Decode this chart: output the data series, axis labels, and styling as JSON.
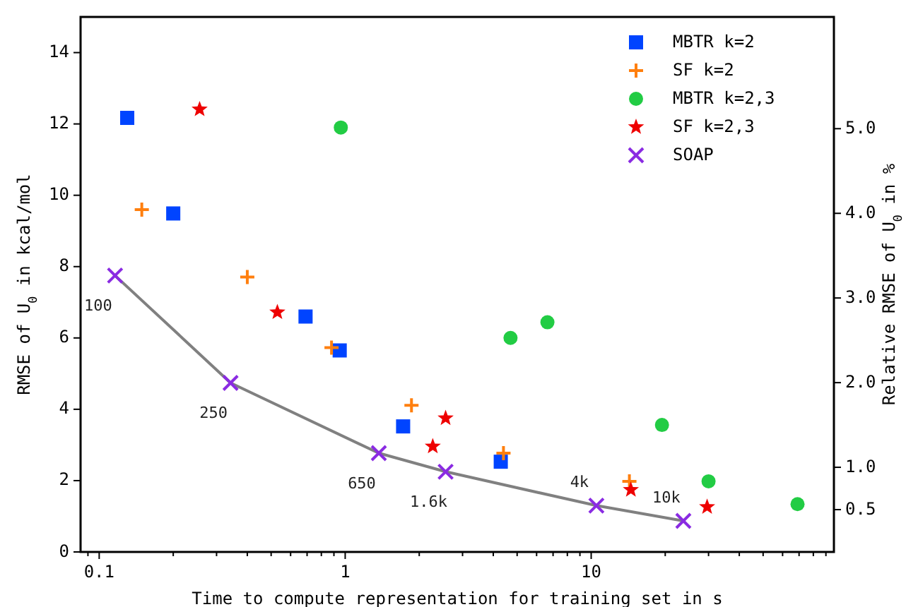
{
  "chart_data": {
    "type": "scatter",
    "xlabel": "Time to compute representation for training set in s",
    "ylabel": "RMSE of U$_{0}$ in kcal/mol",
    "y2label": "Relative RMSE of U$_{0}$ in %",
    "log": "x",
    "xlim": [
      0.084,
      97
    ],
    "ylim": [
      0,
      15
    ],
    "y2lim": [
      0,
      6.32
    ],
    "xticks": [
      {
        "value": 0.09,
        "label": null
      },
      {
        "value": 0.1,
        "label": "0.1"
      },
      {
        "value": 0.2,
        "label": null
      },
      {
        "value": 0.3,
        "label": null
      },
      {
        "value": 0.4,
        "label": null
      },
      {
        "value": 0.5,
        "label": null
      },
      {
        "value": 0.6,
        "label": null
      },
      {
        "value": 0.7,
        "label": null
      },
      {
        "value": 0.8,
        "label": null
      },
      {
        "value": 0.9,
        "label": null
      },
      {
        "value": 1,
        "label": "1"
      },
      {
        "value": 2,
        "label": null
      },
      {
        "value": 3,
        "label": null
      },
      {
        "value": 4,
        "label": null
      },
      {
        "value": 5,
        "label": null
      },
      {
        "value": 6,
        "label": null
      },
      {
        "value": 7,
        "label": null
      },
      {
        "value": 8,
        "label": null
      },
      {
        "value": 9,
        "label": null
      },
      {
        "value": 10,
        "label": "10"
      },
      {
        "value": 20,
        "label": null
      },
      {
        "value": 30,
        "label": null
      },
      {
        "value": 40,
        "label": null
      },
      {
        "value": 50,
        "label": null
      },
      {
        "value": 60,
        "label": null
      },
      {
        "value": 70,
        "label": null
      },
      {
        "value": 80,
        "label": null
      },
      {
        "value": 90,
        "label": null
      }
    ],
    "yticks": [
      0,
      2,
      4,
      6,
      8,
      10,
      12,
      14
    ],
    "y2ticks": [
      0.5,
      {
        "value": 1,
        "label": "1.0"
      },
      {
        "value": 2,
        "label": "2.0"
      },
      {
        "value": 3,
        "label": "3.0"
      },
      {
        "value": 4,
        "label": "4.0"
      },
      {
        "value": 5,
        "label": "5.0"
      }
    ],
    "legend": "top right",
    "grid": false,
    "series": [
      {
        "type": "line",
        "color": "#808080",
        "marker": "none",
        "line_style": "solid",
        "x": [
          0.116,
          0.342,
          1.37,
          2.56,
          10.5,
          23.7
        ],
        "values": [
          7.75,
          4.74,
          2.77,
          2.25,
          1.3,
          0.87
        ]
      },
      {
        "name": "MBTR k=2",
        "color": "#0044ff",
        "marker": "square",
        "x": [
          0.13,
          0.2,
          0.69,
          0.95,
          1.72,
          4.29
        ],
        "values": [
          12.17,
          9.49,
          6.6,
          5.65,
          3.52,
          2.53
        ]
      },
      {
        "name": "SF k=2",
        "color": "#ff7f0e",
        "marker": "cross",
        "x": [
          0.149,
          0.4,
          0.88,
          1.86,
          4.4,
          14.3
        ],
        "values": [
          9.6,
          7.71,
          5.73,
          4.11,
          2.77,
          1.98
        ]
      },
      {
        "name": "MBTR k=2,3",
        "color": "#22cc44",
        "marker": "circle",
        "x": [
          0.96,
          4.7,
          6.64,
          19.4,
          30,
          69
        ],
        "values": [
          11.9,
          6.0,
          6.44,
          3.56,
          1.98,
          1.34
        ]
      },
      {
        "name": "SF k=2,3",
        "color": "#ee0000",
        "marker": "star",
        "x": [
          0.256,
          0.53,
          2.27,
          2.56,
          14.5,
          29.6
        ],
        "values": [
          12.41,
          6.72,
          2.96,
          3.75,
          1.74,
          1.26
        ]
      },
      {
        "name": "SOAP",
        "color": "#8a2be2",
        "marker": "x",
        "x": [
          0.116,
          0.342,
          1.37,
          2.56,
          10.5,
          23.7
        ],
        "values": [
          7.75,
          4.74,
          2.77,
          2.25,
          1.3,
          0.87
        ]
      }
    ],
    "annotations": [
      {
        "text": "100",
        "x": 0.116,
        "y": 7.75
      },
      {
        "text": "250",
        "x": 0.342,
        "y": 4.74
      },
      {
        "text": "650",
        "x": 1.37,
        "y": 2.77
      },
      {
        "text": "1.6k",
        "x": 2.56,
        "y": 2.25
      },
      {
        "text": "4k",
        "x": 10.5,
        "y": 1.3
      },
      {
        "text": "10k",
        "x": 23.7,
        "y": 0.87
      }
    ]
  }
}
